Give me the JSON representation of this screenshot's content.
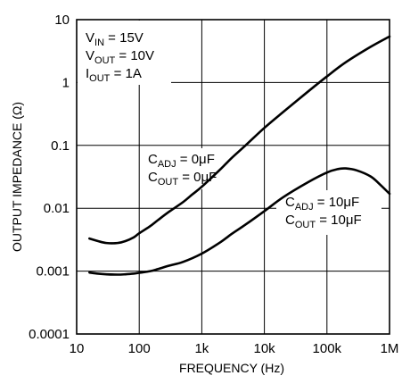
{
  "chart_data": {
    "type": "line",
    "x_scale": "log",
    "y_scale": "log",
    "xlim": [
      10,
      1000000
    ],
    "ylim": [
      0.0001,
      10
    ],
    "grid": true,
    "xlabel": "FREQUENCY (Hz)",
    "ylabel": "OUTPUT IMPEDANCE (Ω)",
    "x_ticks": [
      {
        "value": 10,
        "label": "10"
      },
      {
        "value": 100,
        "label": "100"
      },
      {
        "value": 1000,
        "label": "1k"
      },
      {
        "value": 10000,
        "label": "10k"
      },
      {
        "value": 100000,
        "label": "100k"
      },
      {
        "value": 1000000,
        "label": "1M"
      }
    ],
    "y_ticks": [
      {
        "value": 10,
        "label": "10"
      },
      {
        "value": 1,
        "label": "1"
      },
      {
        "value": 0.1,
        "label": "0.1"
      },
      {
        "value": 0.01,
        "label": "0.01"
      },
      {
        "value": 0.001,
        "label": "0.001"
      },
      {
        "value": 0.0001,
        "label": "0.0001"
      }
    ],
    "conditions": [
      {
        "main": "V",
        "sub": "IN",
        "rest": " = 15V"
      },
      {
        "main": "V",
        "sub": "OUT",
        "rest": " = 10V"
      },
      {
        "main": "I",
        "sub": "OUT",
        "rest": " = 1A"
      }
    ],
    "series": [
      {
        "labels": [
          {
            "main": "C",
            "sub": "ADJ",
            "rest": " = 0μF"
          },
          {
            "main": "C",
            "sub": "OUT",
            "rest": " = 0μF"
          }
        ],
        "x": [
          16,
          22,
          30,
          45,
          60,
          80,
          100,
          150,
          200,
          300,
          500,
          700,
          1000,
          2000,
          3000,
          5000,
          10000,
          20000,
          50000,
          100000,
          200000,
          500000,
          1000000
        ],
        "y": [
          0.0033,
          0.003,
          0.0028,
          0.0028,
          0.003,
          0.0034,
          0.004,
          0.0052,
          0.0065,
          0.0088,
          0.0125,
          0.0165,
          0.022,
          0.042,
          0.063,
          0.1,
          0.19,
          0.34,
          0.72,
          1.25,
          2.1,
          3.7,
          5.4
        ]
      },
      {
        "labels": [
          {
            "main": "C",
            "sub": "ADJ",
            "rest": " = 10μF"
          },
          {
            "main": "C",
            "sub": "OUT",
            "rest": " = 10μF"
          }
        ],
        "x": [
          16,
          22,
          30,
          45,
          60,
          80,
          100,
          150,
          200,
          300,
          500,
          1000,
          2000,
          3000,
          5000,
          10000,
          20000,
          50000,
          100000,
          150000,
          200000,
          300000,
          500000,
          700000,
          1000000
        ],
        "y": [
          0.00095,
          0.00091,
          0.00089,
          0.00088,
          0.00089,
          0.00091,
          0.00094,
          0.001,
          0.00108,
          0.00122,
          0.0014,
          0.0019,
          0.0029,
          0.0039,
          0.0055,
          0.009,
          0.015,
          0.026,
          0.037,
          0.042,
          0.043,
          0.04,
          0.032,
          0.024,
          0.017
        ]
      }
    ]
  }
}
